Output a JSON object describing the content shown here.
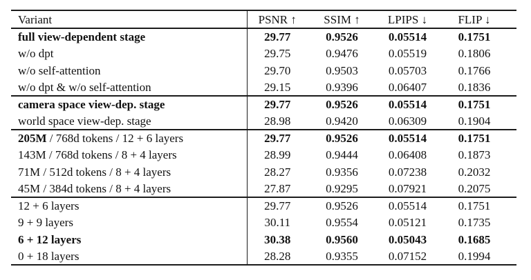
{
  "colors": {
    "background": "#ffffff",
    "text": "#111111",
    "rule": "#1a1a1a"
  },
  "table": {
    "columns": [
      "Variant",
      "PSNR ↑",
      "SSIM ↑",
      "LPIPS ↓",
      "FLIP ↓"
    ],
    "rows": [
      {
        "variant": "full view-dependent stage",
        "psnr": "29.77",
        "ssim": "0.9526",
        "lpips": "0.05514",
        "flip": "0.1751"
      },
      {
        "variant": "w/o dpt",
        "psnr": "29.75",
        "ssim": "0.9476",
        "lpips": "0.05519",
        "flip": "0.1806"
      },
      {
        "variant": "w/o self-attention",
        "psnr": "29.70",
        "ssim": "0.9503",
        "lpips": "0.05703",
        "flip": "0.1766"
      },
      {
        "variant": "w/o dpt & w/o self-attention",
        "psnr": "29.15",
        "ssim": "0.9396",
        "lpips": "0.06407",
        "flip": "0.1836"
      },
      {
        "variant": "camera space view-dep. stage",
        "psnr": "29.77",
        "ssim": "0.9526",
        "lpips": "0.05514",
        "flip": "0.1751"
      },
      {
        "variant": "world space view-dep. stage",
        "psnr": "28.98",
        "ssim": "0.9420",
        "lpips": "0.06309",
        "flip": "0.1904"
      },
      {
        "variant_bold": "205M",
        "variant_rest": " / 768d tokens / 12 + 6 layers",
        "psnr": "29.77",
        "ssim": "0.9526",
        "lpips": "0.05514",
        "flip": "0.1751"
      },
      {
        "variant": "143M / 768d tokens / 8 + 4 layers",
        "psnr": "28.99",
        "ssim": "0.9444",
        "lpips": "0.06408",
        "flip": "0.1873"
      },
      {
        "variant": "71M / 512d tokens / 8 + 4 layers",
        "psnr": "28.27",
        "ssim": "0.9356",
        "lpips": "0.07238",
        "flip": "0.2032"
      },
      {
        "variant": "45M / 384d tokens / 8 + 4 layers",
        "psnr": "27.87",
        "ssim": "0.9295",
        "lpips": "0.07921",
        "flip": "0.2075"
      },
      {
        "variant": "12 + 6 layers",
        "psnr": "29.77",
        "ssim": "0.9526",
        "lpips": "0.05514",
        "flip": "0.1751"
      },
      {
        "variant": "9 + 9 layers",
        "psnr": "30.11",
        "ssim": "0.9554",
        "lpips": "0.05121",
        "flip": "0.1735"
      },
      {
        "variant": "6 + 12 layers",
        "psnr": "30.38",
        "ssim": "0.9560",
        "lpips": "0.05043",
        "flip": "0.1685"
      },
      {
        "variant": "0 + 18 layers",
        "psnr": "28.28",
        "ssim": "0.9355",
        "lpips": "0.07152",
        "flip": "0.1994"
      }
    ]
  }
}
